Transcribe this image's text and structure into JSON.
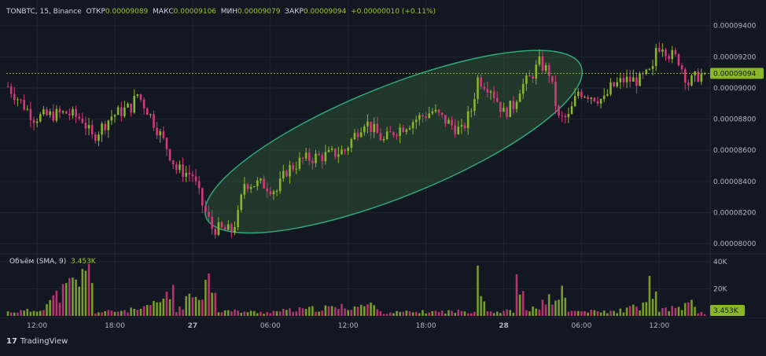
{
  "header": {
    "symbol": "TONBTC, 15, Binance",
    "open_label": "ОТКР",
    "open_value": "0.00009089",
    "high_label": "МАКС",
    "high_value": "0.00009106",
    "low_label": "МИН",
    "low_value": "0.00009079",
    "close_label": "ЗАКР",
    "close_value": "0.00009094",
    "change": "+0.00000010 (+0.11%)"
  },
  "volume_header": {
    "label": "Объём (SMA, 9)",
    "value": "3.453K"
  },
  "branding": {
    "logo_text": "TradingView"
  },
  "colors": {
    "background": "#131722",
    "up": "#8bb62a",
    "down": "#d6397b",
    "highlight_fill": "#2f5233",
    "highlight_stroke": "#2fa77a",
    "price_label_bg": "#8bb62a"
  },
  "chart_data": {
    "type": "candlestick",
    "price_axis_ticks": [
      "0.00009400",
      "0.00009200",
      "0.00009000",
      "0.00008800",
      "0.00008600",
      "0.00008400",
      "0.00008200",
      "0.00008000"
    ],
    "price_axis_values": [
      9.4e-05,
      9.2e-05,
      9e-05,
      8.8e-05,
      8.6e-05,
      8.4e-05,
      8.2e-05,
      8e-05
    ],
    "price_range": [
      7.95e-05,
      9.54e-05
    ],
    "last_price": "0.00009094",
    "last_price_value": 9.094e-05,
    "volume_axis_ticks": [
      "40K",
      "20K"
    ],
    "volume_axis_values": [
      40000,
      20000
    ],
    "volume_range": [
      0,
      44000
    ],
    "volume_sma_label": "3.453K",
    "x_ticks": [
      "12:00",
      "18:00",
      "27",
      "06:00",
      "12:00",
      "18:00",
      "28",
      "06:00",
      "12:00"
    ],
    "x_ticks_bold": [
      false,
      false,
      true,
      false,
      false,
      false,
      true,
      false,
      false
    ],
    "x_tick_indices": [
      9,
      33,
      57,
      81,
      105,
      129,
      153,
      177,
      201
    ],
    "price_keyframes": [
      [
        0,
        9.01e-05
      ],
      [
        8,
        8.81e-05
      ],
      [
        18,
        8.84e-05
      ],
      [
        23,
        8.8e-05
      ],
      [
        26,
        8.68e-05
      ],
      [
        32,
        8.82e-05
      ],
      [
        38,
        8.88e-05
      ],
      [
        40,
        8.96e-05
      ],
      [
        43,
        8.86e-05
      ],
      [
        49,
        8.62e-05
      ],
      [
        52,
        8.48e-05
      ],
      [
        57,
        8.44e-05
      ],
      [
        60,
        8.25e-05
      ],
      [
        63,
        8.1e-05
      ],
      [
        69,
        8.08e-05
      ],
      [
        71,
        8.18e-05
      ],
      [
        73,
        8.39e-05
      ],
      [
        79,
        8.38e-05
      ],
      [
        83,
        8.34e-05
      ],
      [
        86,
        8.47e-05
      ],
      [
        91,
        8.54e-05
      ],
      [
        99,
        8.57e-05
      ],
      [
        104,
        8.6e-05
      ],
      [
        108,
        8.73e-05
      ],
      [
        110,
        8.79e-05
      ],
      [
        116,
        8.66e-05
      ],
      [
        119,
        8.72e-05
      ],
      [
        126,
        8.8e-05
      ],
      [
        131,
        8.85e-05
      ],
      [
        137,
        8.76e-05
      ],
      [
        140,
        8.72e-05
      ],
      [
        143,
        8.86e-05
      ],
      [
        145,
        9.06e-05
      ],
      [
        149,
        9e-05
      ],
      [
        153,
        8.84e-05
      ],
      [
        156,
        8.89e-05
      ],
      [
        158,
        9e-05
      ],
      [
        161,
        9.06e-05
      ],
      [
        164,
        9.16e-05
      ],
      [
        167,
        9.1e-05
      ],
      [
        170,
        8.8e-05
      ],
      [
        173,
        8.81e-05
      ],
      [
        176,
        8.98e-05
      ],
      [
        179,
        8.96e-05
      ],
      [
        184,
        8.92e-05
      ],
      [
        186,
        9e-05
      ],
      [
        190,
        9.05e-05
      ],
      [
        195,
        9.05e-05
      ],
      [
        199,
        9.11e-05
      ],
      [
        200,
        9.26e-05
      ],
      [
        202,
        9.28e-05
      ],
      [
        204,
        9.22e-05
      ],
      [
        207,
        9.18e-05
      ],
      [
        210,
        9.03e-05
      ],
      [
        213,
        9.08e-05
      ],
      [
        215,
        9.09e-05
      ]
    ],
    "volume_keyframes": [
      [
        0,
        3000
      ],
      [
        9,
        4000
      ],
      [
        26,
        33000
      ],
      [
        27,
        2500
      ],
      [
        42,
        5000
      ],
      [
        50,
        14000
      ],
      [
        51,
        22000
      ],
      [
        52,
        3500
      ],
      [
        62,
        26000
      ],
      [
        63,
        25000
      ],
      [
        64,
        21000
      ],
      [
        65,
        4000
      ],
      [
        79,
        2500
      ],
      [
        80,
        3000
      ],
      [
        114,
        8000
      ],
      [
        115,
        2500
      ],
      [
        144,
        3500
      ],
      [
        145,
        40000
      ],
      [
        146,
        20000
      ],
      [
        147,
        16000
      ],
      [
        148,
        3500
      ],
      [
        152,
        3000
      ],
      [
        156,
        4000
      ],
      [
        157,
        22000
      ],
      [
        158,
        20000
      ],
      [
        159,
        16000
      ],
      [
        160,
        3000
      ],
      [
        171,
        16000
      ],
      [
        172,
        12000
      ],
      [
        173,
        3500
      ],
      [
        187,
        3000
      ],
      [
        197,
        8000
      ],
      [
        198,
        24000
      ],
      [
        199,
        20000
      ],
      [
        200,
        14000
      ],
      [
        201,
        3500
      ],
      [
        212,
        9000
      ],
      [
        213,
        2500
      ],
      [
        215,
        2000
      ]
    ],
    "candle_count": 216,
    "highlight": {
      "shape": "ellipse",
      "covers_candles": [
        60,
        178
      ],
      "covers_price": [
        7.96e-05,
        9.35e-05
      ]
    },
    "grid": true
  }
}
